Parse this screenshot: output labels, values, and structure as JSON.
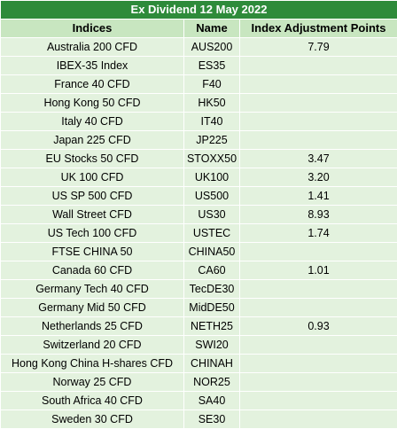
{
  "table": {
    "title": "Ex Dividend 12 May 2022",
    "columns": [
      "Indices",
      "Name",
      "Index Adjustment Points"
    ],
    "rows": [
      [
        "Australia 200 CFD",
        "AUS200",
        "7.79"
      ],
      [
        "IBEX-35 Index",
        "ES35",
        ""
      ],
      [
        "France 40 CFD",
        "F40",
        ""
      ],
      [
        "Hong Kong 50 CFD",
        "HK50",
        ""
      ],
      [
        "Italy 40 CFD",
        "IT40",
        ""
      ],
      [
        "Japan 225 CFD",
        "JP225",
        ""
      ],
      [
        "EU Stocks 50 CFD",
        "STOXX50",
        "3.47"
      ],
      [
        "UK 100 CFD",
        "UK100",
        "3.20"
      ],
      [
        "US SP 500 CFD",
        "US500",
        "1.41"
      ],
      [
        "Wall Street CFD",
        "US30",
        "8.93"
      ],
      [
        "US Tech 100 CFD",
        "USTEC",
        "1.74"
      ],
      [
        "FTSE CHINA 50",
        "CHINA50",
        ""
      ],
      [
        "Canada 60 CFD",
        "CA60",
        "1.01"
      ],
      [
        "Germany Tech 40 CFD",
        "TecDE30",
        ""
      ],
      [
        "Germany Mid 50 CFD",
        "MidDE50",
        ""
      ],
      [
        "Netherlands 25 CFD",
        "NETH25",
        "0.93"
      ],
      [
        "Switzerland 20 CFD",
        "SWI20",
        ""
      ],
      [
        "Hong Kong China H-shares CFD",
        "CHINAH",
        ""
      ],
      [
        "Norway 25 CFD",
        "NOR25",
        ""
      ],
      [
        "South Africa 40 CFD",
        "SA40",
        ""
      ],
      [
        "Sweden 30 CFD",
        "SE30",
        ""
      ]
    ]
  },
  "colors": {
    "title_bg": "#2e8b3a",
    "header_bg": "#c8e6c0",
    "row_bg": "#e3f2de",
    "border": "#ffffff"
  }
}
